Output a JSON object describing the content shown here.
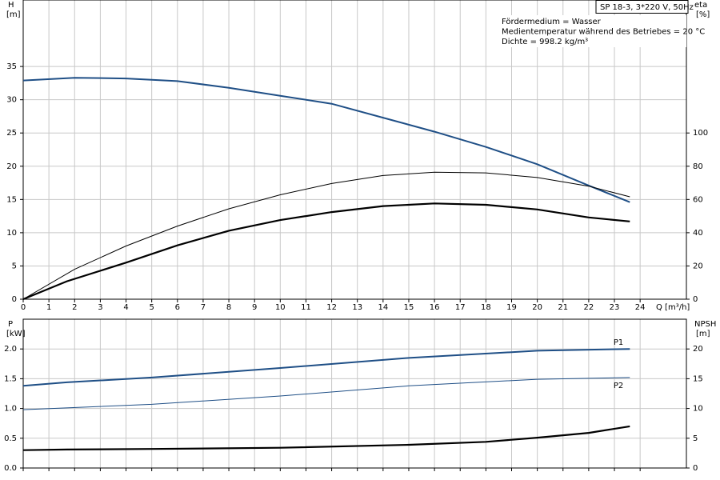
{
  "chart_data": [
    {
      "type": "line",
      "xlabel": "Q [m³/h]",
      "ylabel": "H",
      "yunit": "[m]",
      "y2label": "eta",
      "y2unit": "[%]",
      "info_box": "SP 18-3, 3*220 V, 50Hz",
      "notes": [
        "Fördermedium = Wasser",
        "Medientemperatur während des Betriebes = 20 °C",
        "Dichte = 998.2 kg/m³"
      ],
      "xlim": [
        0,
        25.8
      ],
      "xticks": [
        0,
        1,
        2,
        3,
        4,
        5,
        6,
        7,
        8,
        9,
        10,
        11,
        12,
        13,
        14,
        15,
        16,
        17,
        18,
        19,
        20,
        21,
        22,
        23,
        24
      ],
      "ylim": [
        0,
        45
      ],
      "yticks": [
        0,
        5,
        10,
        15,
        20,
        25,
        30,
        35
      ],
      "y2lim": [
        0,
        180
      ],
      "y2ticks": [
        0,
        20,
        40,
        60,
        80,
        100
      ],
      "grid": true,
      "xtick_labels": true,
      "series": [
        {
          "color": "#1f4f86",
          "width": 2,
          "x": [
            0,
            2,
            4,
            6,
            8,
            10,
            12,
            14,
            16,
            18,
            20,
            22,
            23.6
          ],
          "values": [
            32.9,
            33.3,
            33.2,
            32.8,
            31.8,
            30.6,
            29.4,
            27.3,
            25.2,
            22.9,
            20.3,
            17.1,
            14.6
          ]
        },
        {
          "color": "#000000",
          "width": 1,
          "axis": "y2",
          "x": [
            0,
            2,
            4,
            6,
            8,
            10,
            12,
            14,
            16,
            18,
            20,
            22,
            23.6
          ],
          "values": [
            0,
            18,
            32,
            44,
            54.4,
            62.8,
            69.6,
            74.4,
            76.4,
            76,
            73.2,
            68,
            61.6
          ]
        },
        {
          "color": "#000000",
          "width": 2.2,
          "axis": "y2",
          "x": [
            0,
            1.7,
            4,
            6,
            8,
            10,
            12,
            14,
            16,
            18,
            20,
            22,
            23.6
          ],
          "values": [
            0,
            10.8,
            22,
            32.4,
            41.2,
            47.6,
            52.4,
            56,
            57.6,
            56.8,
            54,
            49.2,
            46.8
          ]
        }
      ]
    },
    {
      "type": "line",
      "ylabel": "P",
      "yunit": "[kW]",
      "y2label": "NPSH",
      "y2unit": "[m]",
      "xlim": [
        0,
        25.8
      ],
      "xticks": [
        0,
        1,
        2,
        3,
        4,
        5,
        6,
        7,
        8,
        9,
        10,
        11,
        12,
        13,
        14,
        15,
        16,
        17,
        18,
        19,
        20,
        21,
        22,
        23,
        24
      ],
      "ylim": [
        0,
        2.5
      ],
      "yticks": [
        {
          "value": 0,
          "label": "0.0"
        },
        0.5,
        {
          "value": 1,
          "label": "1.0"
        },
        1.5,
        {
          "value": 2,
          "label": "2.0"
        }
      ],
      "y2lim": [
        0,
        25
      ],
      "y2ticks": [
        0,
        5,
        10,
        15,
        20
      ],
      "grid": true,
      "xtick_labels": false,
      "series": [
        {
          "name": "P1",
          "color": "#1f4f86",
          "width": 2,
          "x": [
            0,
            1.7,
            5,
            10,
            15,
            20,
            23.6
          ],
          "values": [
            1.38,
            1.44,
            1.52,
            1.68,
            1.85,
            1.97,
            2.0
          ]
        },
        {
          "name": "P2",
          "color": "#1f4f86",
          "width": 1,
          "x": [
            0,
            5,
            10,
            15,
            20,
            23.6
          ],
          "values": [
            0.98,
            1.07,
            1.21,
            1.38,
            1.49,
            1.52
          ]
        },
        {
          "color": "#000000",
          "width": 2.2,
          "axis": "y2",
          "x": [
            0,
            1.7,
            5,
            10,
            15,
            18,
            20,
            22,
            23.6
          ],
          "values": [
            3.0,
            3.1,
            3.2,
            3.4,
            3.9,
            4.4,
            5.1,
            5.9,
            7.0
          ]
        }
      ]
    }
  ]
}
